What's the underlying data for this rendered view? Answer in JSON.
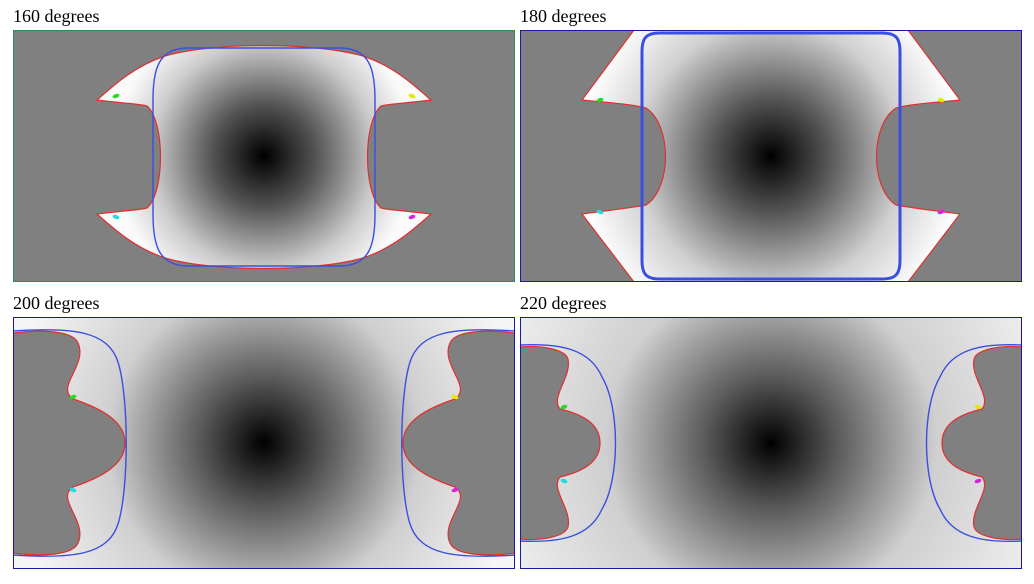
{
  "panels": [
    {
      "label": "160 degrees",
      "border_color": "#2e8b57"
    },
    {
      "label": "180 degrees",
      "border_color": "#1a1aa0"
    },
    {
      "label": "200 degrees",
      "border_color": "#1a1aa0"
    },
    {
      "label": "220 degrees",
      "border_color": "#1a1aa0"
    }
  ],
  "colors": {
    "background_gray": "#808080",
    "outline_red": "#e03030",
    "outline_blue": "#3a4fe0",
    "marker_green": "#22dd22",
    "marker_yellow": "#e8e800",
    "marker_cyan": "#22dddd",
    "marker_magenta": "#dd22dd"
  }
}
